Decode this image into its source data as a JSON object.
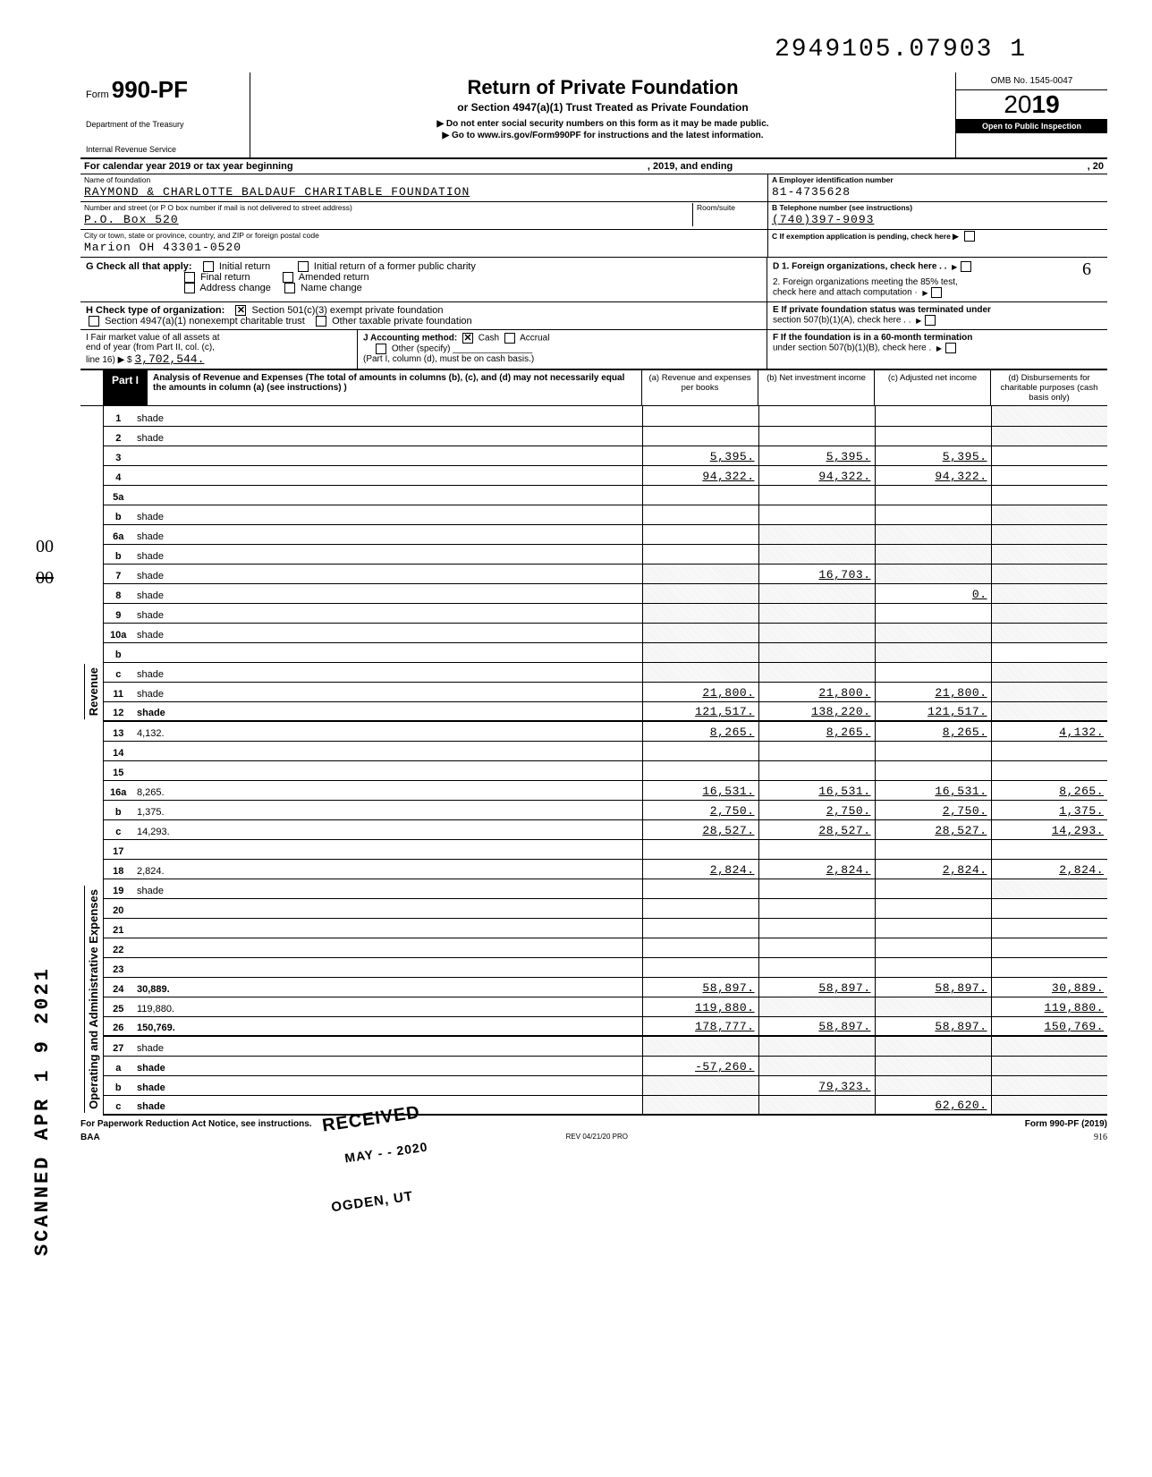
{
  "top_document_number": "2949105.07903 1",
  "form": {
    "number_prefix": "Form",
    "number": "990-PF",
    "dept1": "Department of the Treasury",
    "dept2": "Internal Revenue Service",
    "title": "Return of Private Foundation",
    "subtitle1": "or Section 4947(a)(1) Trust Treated as Private Foundation",
    "subtitle2": "▶ Do not enter social security numbers on this form as it may be made public.",
    "subtitle3": "▶ Go to www.irs.gov/Form990PF for instructions and the latest information.",
    "omb": "OMB No. 1545-0047",
    "year_light": "20",
    "year_bold": "19",
    "open": "Open to Public Inspection"
  },
  "cal_year": {
    "prefix": "For calendar year 2019 or tax year beginning",
    "mid": ", 2019, and ending",
    "suffix": ", 20"
  },
  "id": {
    "name_lbl": "Name of foundation",
    "name_val": "RAYMOND & CHARLOTTE BALDAUF CHARITABLE FOUNDATION",
    "street_lbl": "Number and street (or P O  box number if mail is not delivered to street address)",
    "room_lbl": "Room/suite",
    "street_val": "P.O. Box 520",
    "city_lbl": "City or town, state or province, country, and ZIP or foreign postal code",
    "city_val": "Marion OH 43301-0520",
    "ein_lbl": "A  Employer identification number",
    "ein_val": "81-4735628",
    "tel_lbl": "B  Telephone number (see instructions)",
    "tel_val": "(740)397-9093",
    "c_lbl": "C  If exemption application is pending, check here ▶"
  },
  "g": {
    "lead": "G  Check all that apply:",
    "initial": "Initial return",
    "initial_former": "Initial return of a former public charity",
    "final": "Final return",
    "amended": "Amended return",
    "address": "Address change",
    "namechg": "Name change",
    "d1": "D  1. Foreign organizations, check here  .   .",
    "d2a": "2. Foreign organizations meeting the 85% test,",
    "d2b": "check here and attach computation    ·"
  },
  "h": {
    "lead": "H  Check type of organization:",
    "opt1": "Section 501(c)(3) exempt private foundation",
    "line2a": "Section 4947(a)(1) nonexempt charitable trust",
    "line2b": "Other taxable private foundation",
    "e1": "E  If private foundation status was terminated under",
    "e2": "section 507(b)(1)(A), check here   .    ."
  },
  "i": {
    "left1": "I    Fair market value of all assets at",
    "left2": "end of year (from Part II, col. (c),",
    "left3": "line 16) ▶ $",
    "left_val": "3,702,544.",
    "mid1": "J  Accounting method:",
    "mid_cash": "Cash",
    "mid_accrual": "Accrual",
    "mid2": "Other (specify)",
    "mid3": "(Part I, column (d), must be on cash basis.)",
    "f1": "F  If the foundation is in a 60-month termination",
    "f2": "under section 507(b)(1)(B), check here    ."
  },
  "part1": {
    "tab": "Part I",
    "desc": "Analysis of Revenue and Expenses (The total of amounts in columns (b), (c), and (d) may not necessarily equal the amounts in column (a) (see instructions) )",
    "col_a": "(a) Revenue and expenses per books",
    "col_b": "(b) Net investment income",
    "col_c": "(c) Adjusted net income",
    "col_d": "(d) Disbursements for charitable purposes (cash basis only)"
  },
  "side": {
    "revenue": "Revenue",
    "opadmin": "Operating and Administrative Expenses",
    "scanned": "SCANNED APR 1 9 2021"
  },
  "rows": [
    {
      "n": "1",
      "d": "shade",
      "a": "",
      "b": "",
      "c": ""
    },
    {
      "n": "2",
      "d": "shade",
      "a": "",
      "b": "",
      "c": ""
    },
    {
      "n": "3",
      "d": "",
      "a": "5,395.",
      "b": "5,395.",
      "c": "5,395."
    },
    {
      "n": "4",
      "d": "",
      "a": "94,322.",
      "b": "94,322.",
      "c": "94,322."
    },
    {
      "n": "5a",
      "d": "",
      "a": "",
      "b": "",
      "c": ""
    },
    {
      "n": "b",
      "d": "shade",
      "a": "",
      "b": "",
      "c": ""
    },
    {
      "n": "6a",
      "d": "shade",
      "a": "",
      "b": "shade",
      "c": "shade"
    },
    {
      "n": "b",
      "d": "shade",
      "a": "",
      "b": "shade",
      "c": "shade"
    },
    {
      "n": "7",
      "d": "shade",
      "a": "shade",
      "b": "16,703.",
      "c": "shade"
    },
    {
      "n": "8",
      "d": "shade",
      "a": "shade",
      "b": "shade",
      "c": "0."
    },
    {
      "n": "9",
      "d": "shade",
      "a": "shade",
      "b": "shade",
      "c": ""
    },
    {
      "n": "10a",
      "d": "shade",
      "a": "shade",
      "b": "shade",
      "c": "shade"
    },
    {
      "n": "b",
      "d": "",
      "a": "shade",
      "b": "shade",
      "c": "shade"
    },
    {
      "n": "c",
      "d": "shade",
      "a": "shade",
      "b": "shade",
      "c": ""
    },
    {
      "n": "11",
      "d": "shade",
      "a": "21,800.",
      "b": "21,800.",
      "c": "21,800."
    },
    {
      "n": "12",
      "d": "shade",
      "a": "121,517.",
      "b": "138,220.",
      "c": "121,517.",
      "bold": true,
      "thick": true
    },
    {
      "n": "13",
      "d": "4,132.",
      "a": "8,265.",
      "b": "8,265.",
      "c": "8,265."
    },
    {
      "n": "14",
      "d": "",
      "a": "",
      "b": "",
      "c": ""
    },
    {
      "n": "15",
      "d": "",
      "a": "",
      "b": "",
      "c": ""
    },
    {
      "n": "16a",
      "d": "8,265.",
      "a": "16,531.",
      "b": "16,531.",
      "c": "16,531."
    },
    {
      "n": "b",
      "d": "1,375.",
      "a": "2,750.",
      "b": "2,750.",
      "c": "2,750."
    },
    {
      "n": "c",
      "d": "14,293.",
      "a": "28,527.",
      "b": "28,527.",
      "c": "28,527."
    },
    {
      "n": "17",
      "d": "",
      "a": "",
      "b": "",
      "c": ""
    },
    {
      "n": "18",
      "d": "2,824.",
      "a": "2,824.",
      "b": "2,824.",
      "c": "2,824."
    },
    {
      "n": "19",
      "d": "shade",
      "a": "",
      "b": "",
      "c": ""
    },
    {
      "n": "20",
      "d": "",
      "a": "",
      "b": "",
      "c": ""
    },
    {
      "n": "21",
      "d": "",
      "a": "",
      "b": "",
      "c": ""
    },
    {
      "n": "22",
      "d": "",
      "a": "",
      "b": "",
      "c": ""
    },
    {
      "n": "23",
      "d": "",
      "a": "",
      "b": "",
      "c": ""
    },
    {
      "n": "24",
      "d": "30,889.",
      "a": "58,897.",
      "b": "58,897.",
      "c": "58,897.",
      "bold": true
    },
    {
      "n": "25",
      "d": "119,880.",
      "a": "119,880.",
      "b": "shade",
      "c": "shade"
    },
    {
      "n": "26",
      "d": "150,769.",
      "a": "178,777.",
      "b": "58,897.",
      "c": "58,897.",
      "bold": true,
      "thick": true
    },
    {
      "n": "27",
      "d": "shade",
      "a": "shade",
      "b": "shade",
      "c": "shade"
    },
    {
      "n": "a",
      "d": "shade",
      "a": "-57,260.",
      "b": "shade",
      "c": "shade",
      "bold": true
    },
    {
      "n": "b",
      "d": "shade",
      "a": "shade",
      "b": "79,323.",
      "c": "shade",
      "bold": true
    },
    {
      "n": "c",
      "d": "shade",
      "a": "shade",
      "b": "shade",
      "c": "62,620.",
      "bold": true,
      "thick": true
    }
  ],
  "stamps": {
    "received": "RECEIVED",
    "may": "MAY - - 2020",
    "ogden": "OGDEN, UT"
  },
  "footer": {
    "left": "For Paperwork Reduction Act Notice, see instructions.",
    "mid": "REV 04/21/20 PRO",
    "right": "Form 990-PF (2019)",
    "baa": "BAA",
    "pg": "916"
  },
  "handwritten": {
    "left_00_1": "00",
    "left_00_2": "00",
    "left_dash": "——",
    "right_6": "6",
    "right_arrow": "↙"
  },
  "colors": {
    "text": "#000000",
    "bg": "#ffffff",
    "shade": "#eeeeee"
  }
}
